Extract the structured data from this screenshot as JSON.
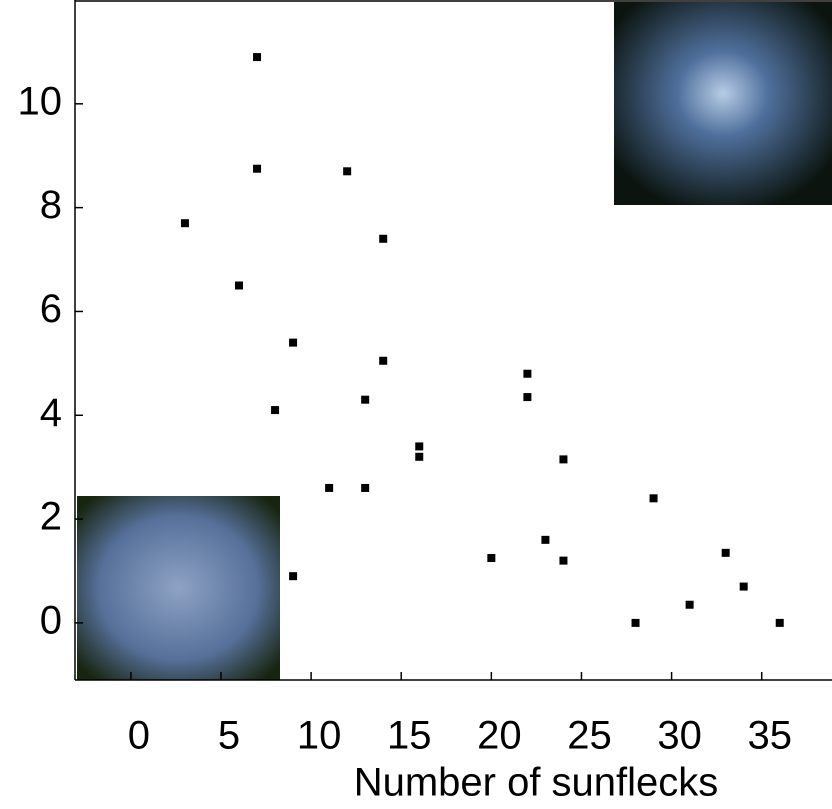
{
  "chart_data": {
    "type": "scatter",
    "x_label": "Number of sunflecks",
    "x": [
      3,
      7,
      7,
      6,
      12,
      14,
      9,
      14,
      8,
      13,
      16,
      16,
      22,
      22,
      24,
      11,
      13,
      29,
      20,
      23,
      24,
      33,
      34,
      31,
      28,
      36,
      9
    ],
    "values": [
      7.7,
      10.9,
      8.75,
      6.5,
      8.7,
      7.4,
      5.4,
      5.05,
      4.1,
      4.3,
      3.4,
      3.2,
      4.8,
      4.35,
      3.15,
      2.6,
      2.6,
      2.4,
      1.25,
      1.6,
      1.2,
      1.35,
      0.7,
      0.35,
      0,
      0,
      0.9
    ],
    "color": "#000000",
    "xlim": [
      -3.1,
      38.9
    ],
    "xticks": [
      0,
      5,
      10,
      15,
      20,
      25,
      30,
      35
    ],
    "ylim": [
      -1.1,
      12
    ],
    "yticks": [
      0,
      2,
      4,
      6,
      8,
      10
    ]
  }
}
